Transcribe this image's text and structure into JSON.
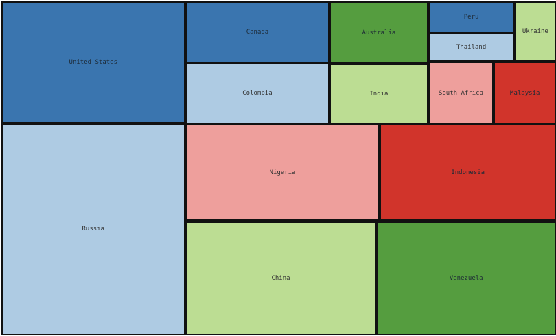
{
  "chart_data": {
    "type": "treemap",
    "title": "",
    "legend": "none",
    "palette": {
      "dark_blue": "#3a75af",
      "light_blue": "#aecbe3",
      "dark_green": "#559d3f",
      "light_green": "#bcdd93",
      "pink": "#ee9f9c",
      "red": "#d1342b"
    },
    "items": [
      {
        "label": "Russia",
        "value": 17098,
        "color": "#aecbe3"
      },
      {
        "label": "United States",
        "value": 9834,
        "color": "#3a75af"
      },
      {
        "label": "China",
        "value": 9597,
        "color": "#bcdd93"
      },
      {
        "label": "Venezuela",
        "value": 9000,
        "color": "#559d3f"
      },
      {
        "label": "Nigeria",
        "value": 8300,
        "color": "#ee9f9c"
      },
      {
        "label": "Indonesia",
        "value": 7500,
        "color": "#d1342b"
      },
      {
        "label": "Canada",
        "value": 3900,
        "color": "#3a75af"
      },
      {
        "label": "Colombia",
        "value": 3900,
        "color": "#aecbe3"
      },
      {
        "label": "Australia",
        "value": 2700,
        "color": "#559d3f"
      },
      {
        "label": "India",
        "value": 2600,
        "color": "#bcdd93"
      },
      {
        "label": "South Africa",
        "value": 1800,
        "color": "#ee9f9c"
      },
      {
        "label": "Malaysia",
        "value": 1700,
        "color": "#d1342b"
      },
      {
        "label": "Peru",
        "value": 1200,
        "color": "#3a75af"
      },
      {
        "label": "Thailand",
        "value": 1100,
        "color": "#aecbe3"
      },
      {
        "label": "Ukraine",
        "value": 1100,
        "color": "#bcdd93"
      }
    ]
  }
}
